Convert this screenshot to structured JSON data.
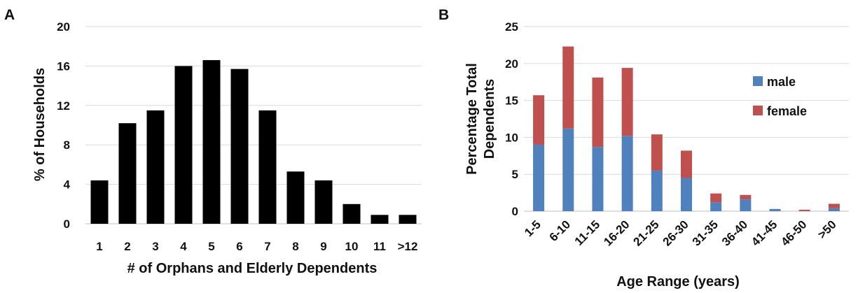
{
  "chart_data": [
    {
      "panel_label": "A",
      "type": "bar",
      "title": "",
      "xlabel": "# of Orphans and Elderly Dependents",
      "ylabel": "% of Households",
      "categories": [
        "1",
        "2",
        "3",
        "4",
        "5",
        "6",
        "7",
        "8",
        "9",
        "10",
        "11",
        ">12"
      ],
      "values": [
        4.4,
        10.2,
        11.5,
        16.0,
        16.6,
        15.7,
        11.5,
        5.3,
        4.4,
        2.0,
        0.9,
        0.9
      ],
      "ylim": [
        0,
        20
      ],
      "yticks": [
        "0",
        "4",
        "8",
        "12",
        "16",
        "20"
      ],
      "grid": true,
      "colors": {
        "bar": "#000000"
      }
    },
    {
      "panel_label": "B",
      "type": "bar",
      "stacked": true,
      "title": "",
      "xlabel": "Age Range (years)",
      "ylabel": [
        "Percentage Total",
        "Dependents"
      ],
      "categories": [
        "1-5",
        "6-10",
        "11-15",
        "16-20",
        "21-25",
        "26-30",
        "31-35",
        "36-40",
        "41-45",
        "46-50",
        ">50"
      ],
      "series": [
        {
          "name": "male",
          "color": "#4f81bd",
          "values": [
            9.0,
            11.2,
            8.7,
            10.2,
            5.5,
            4.5,
            1.2,
            1.6,
            0.3,
            0.0,
            0.4
          ]
        },
        {
          "name": "female",
          "color": "#c0504d",
          "values": [
            6.7,
            11.1,
            9.4,
            9.2,
            4.9,
            3.7,
            1.2,
            0.6,
            0.0,
            0.2,
            0.6
          ]
        }
      ],
      "ylim": [
        0,
        25
      ],
      "yticks": [
        "0",
        "5",
        "10",
        "15",
        "20",
        "25"
      ],
      "grid": true,
      "legend": "top-right"
    }
  ]
}
